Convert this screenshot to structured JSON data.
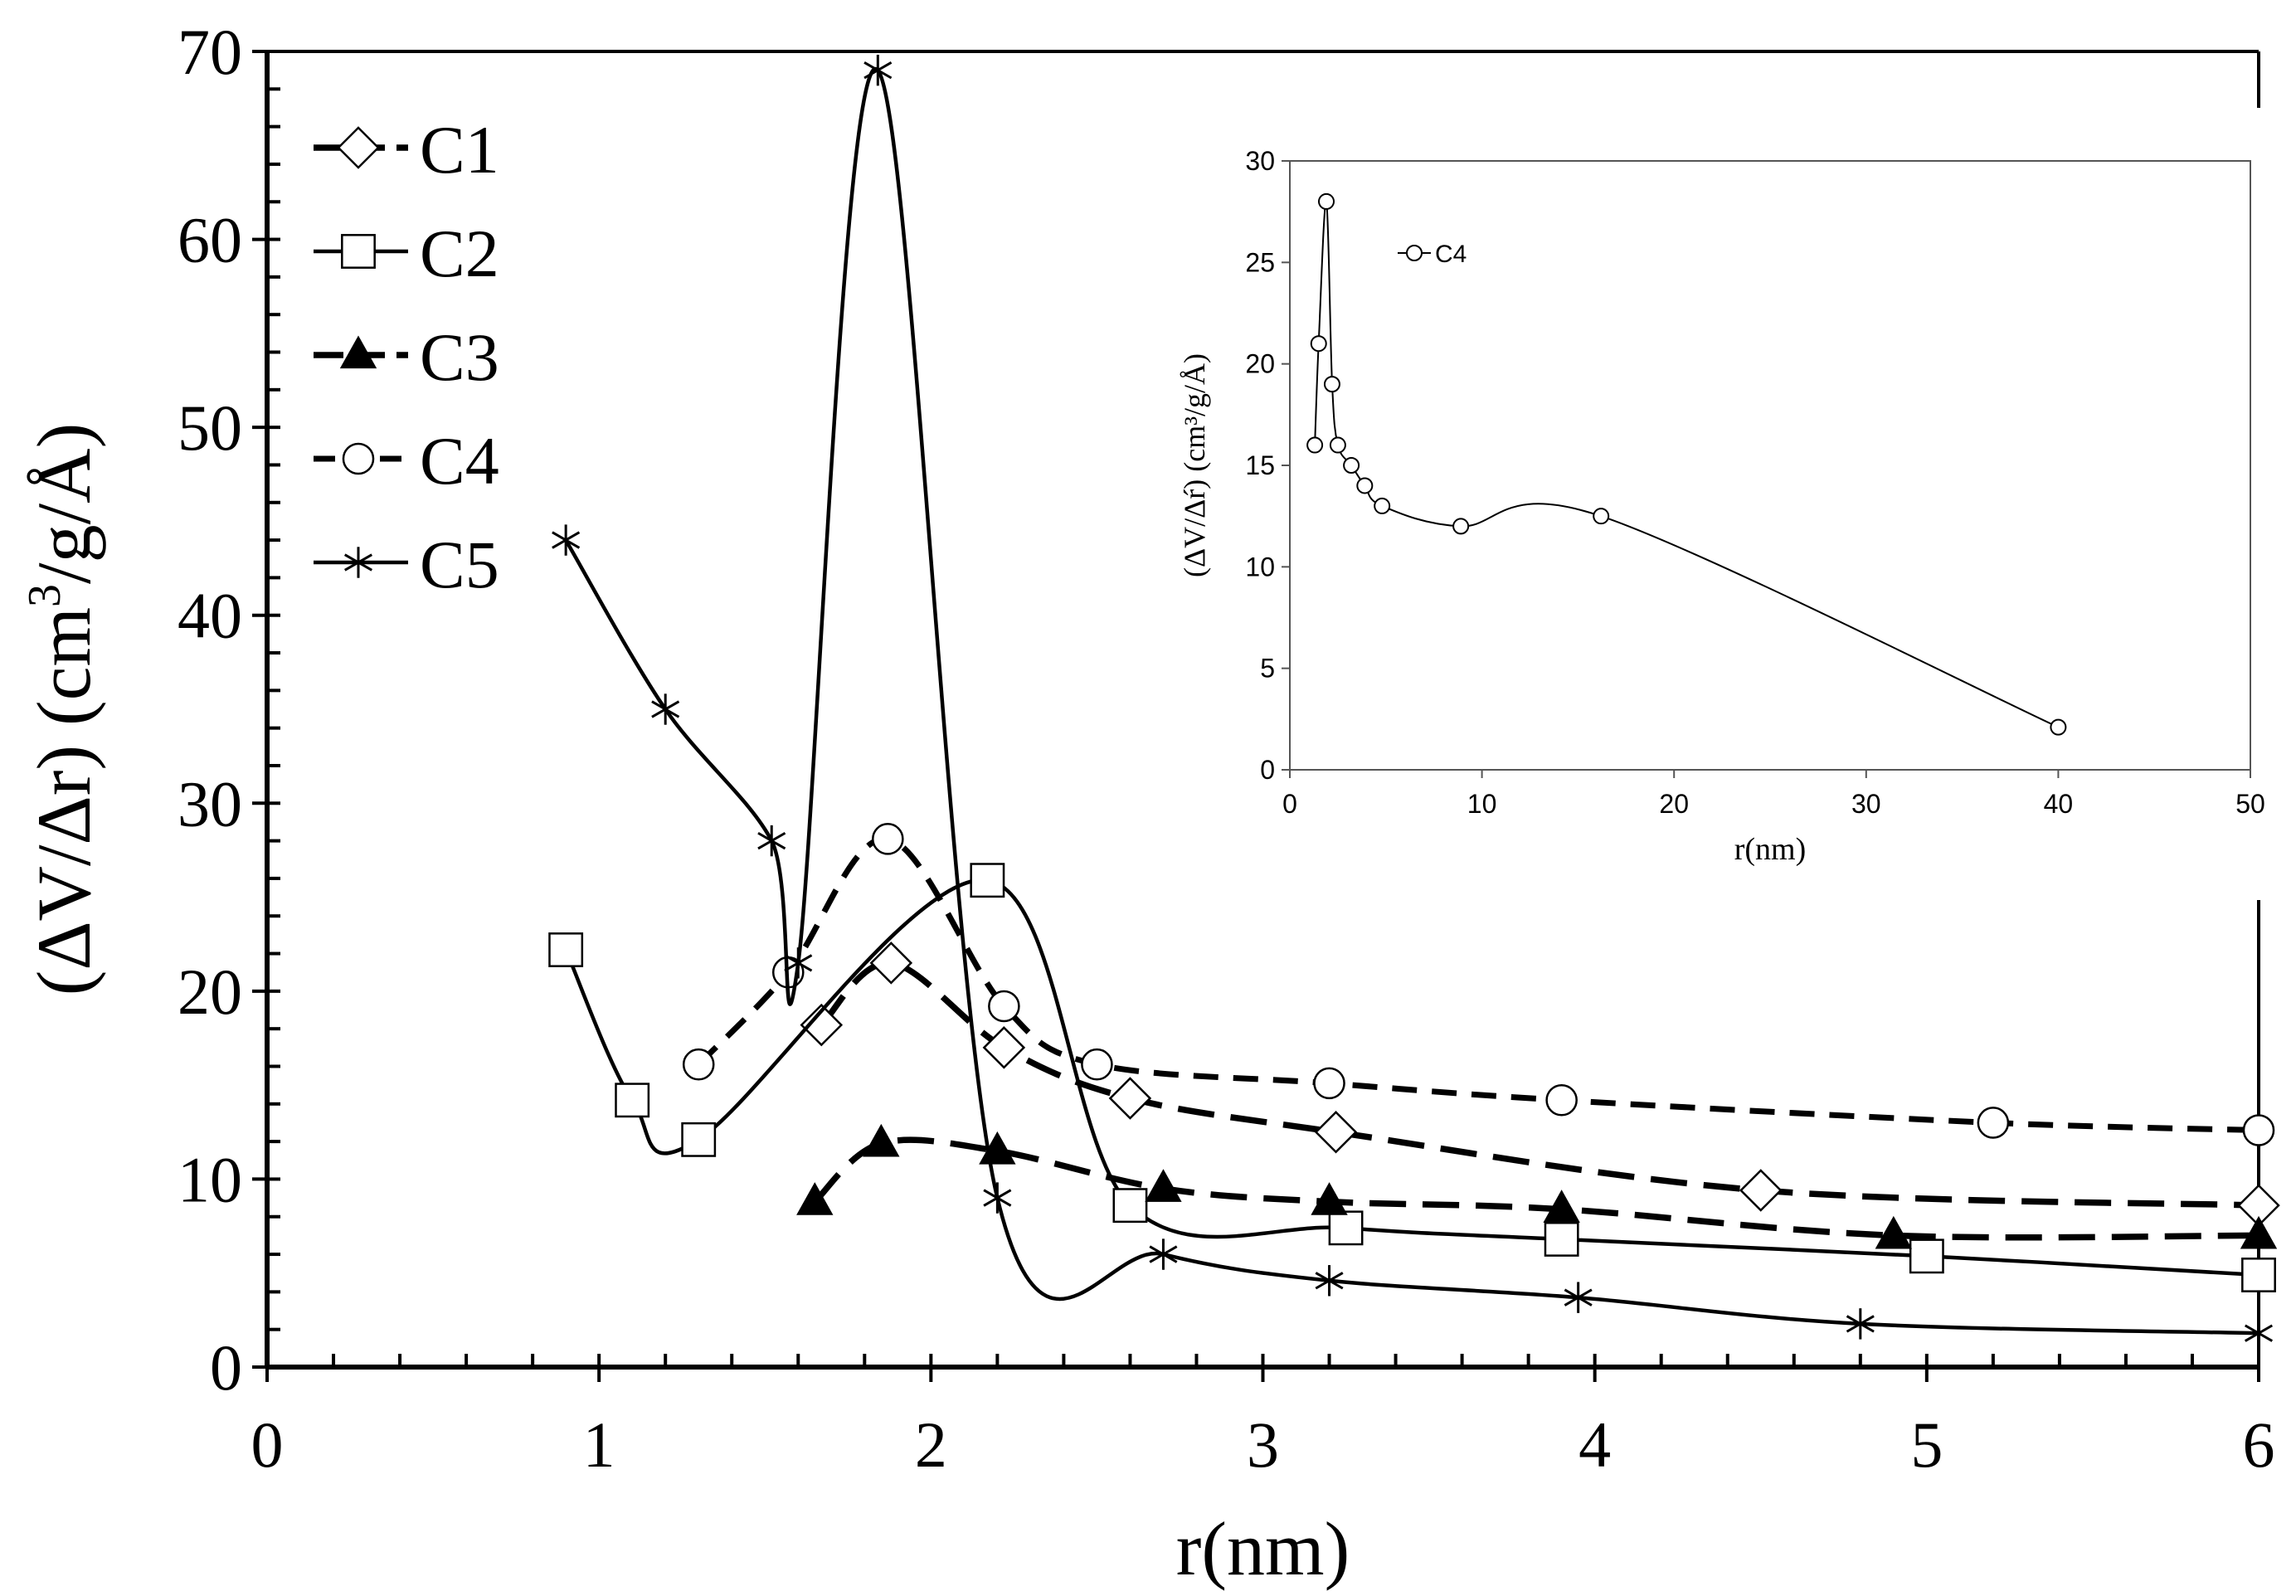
{
  "chart_data": [
    {
      "id": "main",
      "type": "line",
      "xlabel": "r(nm)",
      "ylabel_parts": {
        "open": "(ΔV/Δ",
        "rlabel": "r",
        "mid": ") (cm",
        "sup": "3",
        "close": "/g/",
        "unit": "Å",
        "end": ")"
      },
      "xlim": [
        0,
        6
      ],
      "ylim": [
        0,
        70
      ],
      "x_ticks": [
        0,
        1,
        2,
        3,
        4,
        5,
        6
      ],
      "y_ticks": [
        0,
        10,
        20,
        30,
        40,
        50,
        60,
        70
      ],
      "x_tick_labels": [
        "0",
        "1",
        "2",
        "3",
        "4",
        "5",
        "6"
      ],
      "y_tick_labels": [
        "0",
        "10",
        "20",
        "30",
        "40",
        "50",
        "60",
        "70"
      ],
      "legend": {
        "placement": "top-left",
        "entries": [
          "C1",
          "C2",
          "C3",
          "C4",
          "C5"
        ]
      },
      "series": [
        {
          "name": "C1",
          "marker": "diamond-open",
          "line": "long-dash",
          "points": [
            [
              1.67,
              18.2
            ],
            [
              1.88,
              21.5
            ],
            [
              2.22,
              17.0
            ],
            [
              2.6,
              14.3
            ],
            [
              3.22,
              12.5
            ],
            [
              4.5,
              9.4
            ],
            [
              6.0,
              8.6
            ]
          ]
        },
        {
          "name": "C2",
          "marker": "square-open",
          "line": "solid",
          "points": [
            [
              0.9,
              22.2
            ],
            [
              1.1,
              14.2
            ],
            [
              1.3,
              12.1
            ],
            [
              2.17,
              25.9
            ],
            [
              2.6,
              8.6
            ],
            [
              3.25,
              7.4
            ],
            [
              3.9,
              6.8
            ],
            [
              5.0,
              5.9
            ],
            [
              6.0,
              4.9
            ]
          ]
        },
        {
          "name": "C3",
          "marker": "triangle-filled",
          "line": "long-dash",
          "points": [
            [
              1.65,
              8.8
            ],
            [
              1.85,
              11.9
            ],
            [
              2.2,
              11.5
            ],
            [
              2.7,
              9.5
            ],
            [
              3.2,
              8.8
            ],
            [
              3.9,
              8.4
            ],
            [
              4.9,
              7.0
            ],
            [
              6.0,
              7.0
            ]
          ]
        },
        {
          "name": "C4",
          "marker": "circle-open",
          "line": "dash",
          "points": [
            [
              1.3,
              16.1
            ],
            [
              1.57,
              21.0
            ],
            [
              1.87,
              28.1
            ],
            [
              2.22,
              19.2
            ],
            [
              2.5,
              16.1
            ],
            [
              3.2,
              15.1
            ],
            [
              3.9,
              14.2
            ],
            [
              5.2,
              13.0
            ],
            [
              6.0,
              12.6
            ]
          ]
        },
        {
          "name": "C5",
          "marker": "asterisk",
          "line": "solid",
          "points": [
            [
              0.9,
              44.0
            ],
            [
              1.2,
              35.0
            ],
            [
              1.52,
              28.0
            ],
            [
              1.6,
              21.5
            ],
            [
              1.84,
              69.0
            ],
            [
              2.2,
              9.0
            ],
            [
              2.7,
              6.0
            ],
            [
              3.2,
              4.6
            ],
            [
              3.95,
              3.7
            ],
            [
              4.8,
              2.3
            ],
            [
              6.0,
              1.8
            ]
          ]
        }
      ]
    },
    {
      "id": "inset",
      "type": "line",
      "xlabel": "r(nm)",
      "ylabel": "(ΔV/Δŕ) (cm³/g/Å)",
      "xlim": [
        0,
        50
      ],
      "ylim": [
        0,
        30
      ],
      "x_ticks": [
        0,
        10,
        20,
        30,
        40,
        50
      ],
      "y_ticks": [
        0,
        5,
        10,
        15,
        20,
        25,
        30
      ],
      "x_tick_labels": [
        "0",
        "10",
        "20",
        "30",
        "40",
        "50"
      ],
      "y_tick_labels": [
        "0",
        "5",
        "10",
        "15",
        "20",
        "25",
        "30"
      ],
      "legend": {
        "placement": "top-left",
        "entries": [
          "C4"
        ]
      },
      "series": [
        {
          "name": "C4",
          "marker": "circle-open",
          "line": "solid",
          "points": [
            [
              1.3,
              16.0
            ],
            [
              1.5,
              21.0
            ],
            [
              1.9,
              28.0
            ],
            [
              2.2,
              19.0
            ],
            [
              2.5,
              16.0
            ],
            [
              3.2,
              15.0
            ],
            [
              3.9,
              14.0
            ],
            [
              4.8,
              13.0
            ],
            [
              8.9,
              12.0
            ],
            [
              16.2,
              12.5
            ],
            [
              40.0,
              2.1
            ]
          ]
        }
      ]
    }
  ]
}
